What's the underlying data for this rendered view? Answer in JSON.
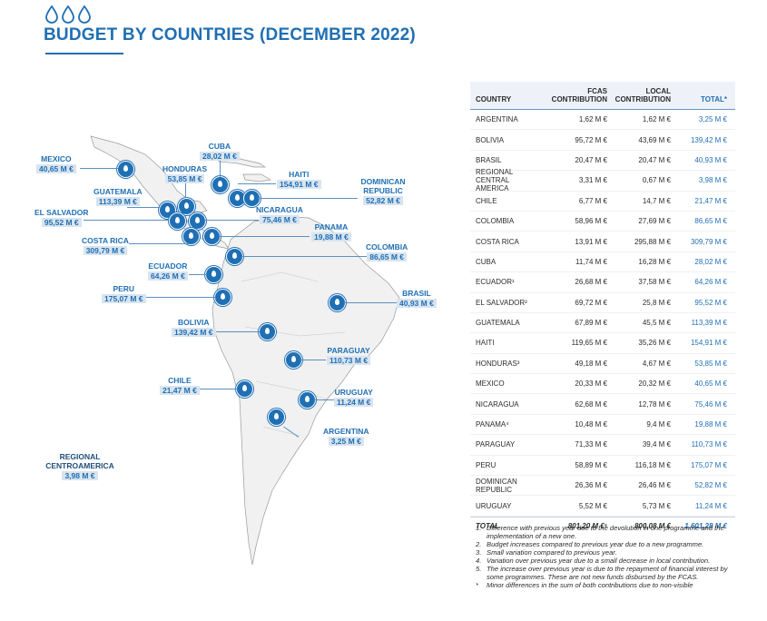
{
  "title": "BUDGET BY COUNTRIES (DECEMBER 2022)",
  "accent": "#1f6fb4",
  "table": {
    "headers": [
      "COUNTRY",
      "FCAS CONTRIBUTION",
      "LOCAL CONTRIBUTION",
      "TOTAL*"
    ],
    "rows": [
      [
        "ARGENTINA",
        "1,62 M €",
        "1,62 M €",
        "3,25 M €"
      ],
      [
        "BOLIVIA",
        "95,72 M €",
        "43,69 M €",
        "139,42 M €"
      ],
      [
        "BRASIL",
        "20,47 M €",
        "20,47 M €",
        "40,93 M €"
      ],
      [
        "REGIONAL CENTRAL AMERICA",
        "3,31 M €",
        "0,67 M €",
        "3,98 M €"
      ],
      [
        "CHILE",
        "6,77 M €",
        "14,7 M €",
        "21,47 M €"
      ],
      [
        "COLOMBIA",
        "58,96 M €",
        "27,69 M €",
        "86,65 M €"
      ],
      [
        "COSTA RICA",
        "13,91 M €",
        "295,88 M €",
        "309,79 M €"
      ],
      [
        "CUBA",
        "11,74 M €",
        "16,28 M €",
        "28,02 M €"
      ],
      [
        "ECUADOR¹",
        "26,68 M €",
        "37,58 M €",
        "64,26 M €"
      ],
      [
        "EL SALVADOR²",
        "69,72 M €",
        "25,8 M €",
        "95,52 M €"
      ],
      [
        "GUATEMALA",
        "67,89 M €",
        "45,5 M €",
        "113,39 M €"
      ],
      [
        "HAITI",
        "119,65 M €",
        "35,26 M €",
        "154,91 M €"
      ],
      [
        "HONDURAS³",
        "49,18 M €",
        "4,67 M €",
        "53,85 M €"
      ],
      [
        "MEXICO",
        "20,33 M €",
        "20,32 M €",
        "40,65 M €"
      ],
      [
        "NICARAGUA",
        "62,68 M €",
        "12,78 M €",
        "75,46 M €"
      ],
      [
        "PANAMA⁴",
        "10,48 M €",
        "9,4 M €",
        "19,88 M €"
      ],
      [
        "PARAGUAY",
        "71,33 M €",
        "39,4 M €",
        "110,73 M €"
      ],
      [
        "PERU",
        "58,89 M €",
        "116,18 M €",
        "175,07 M €"
      ],
      [
        "DOMINICAN REPUBLIC",
        "26,36 M €",
        "26,46 M €",
        "52,82 M €"
      ],
      [
        "URUGUAY",
        "5,52 M €",
        "5,73 M €",
        "11,24 M €"
      ]
    ],
    "total": [
      "TOTAL",
      "801,20 M €⁵",
      "800,08 M €",
      "1.601,28 M €"
    ]
  },
  "notes": [
    {
      "k": "1.",
      "t": "Difference with previous year due to the devolution in one programme and the implementation of a new one."
    },
    {
      "k": "2.",
      "t": "Budget increases compared to previous year due to a new programme."
    },
    {
      "k": "3.",
      "t": "Small variation compared to previous year."
    },
    {
      "k": "4.",
      "t": "Variation over previous year due to a small decrease in local contribution."
    },
    {
      "k": "5.",
      "t": "The increase over previous year is due to the repayment of financial interest by some programmes. These are not new funds disbursed by the FCAS."
    },
    {
      "k": "*",
      "t": "Minor differences in the sum of both contributions due to non-visible"
    }
  ],
  "map_labels": [
    {
      "id": "mexico",
      "name": "MEXICO",
      "value": "40,65 M €"
    },
    {
      "id": "cuba",
      "name": "CUBA",
      "value": "28,02 M €"
    },
    {
      "id": "honduras",
      "name": "HONDURAS",
      "value": "53,85 M €"
    },
    {
      "id": "haiti",
      "name": "HAITI",
      "value": "154,91 M €"
    },
    {
      "id": "dominican",
      "name": "DOMINICAN REPUBLIC",
      "value": "52,82 M €"
    },
    {
      "id": "guatemala",
      "name": "GUATEMALA",
      "value": "113,39 M €"
    },
    {
      "id": "elsalvador",
      "name": "EL SALVADOR",
      "value": "95,52 M €"
    },
    {
      "id": "nicaragua",
      "name": "NICARAGUA",
      "value": "75,46 M €"
    },
    {
      "id": "costarica",
      "name": "COSTA RICA",
      "value": "309,79 M €"
    },
    {
      "id": "panama",
      "name": "PANAMA",
      "value": "19,88 M €"
    },
    {
      "id": "colombia",
      "name": "COLOMBIA",
      "value": "86,65 M €"
    },
    {
      "id": "ecuador",
      "name": "ECUADOR",
      "value": "64,26 M €"
    },
    {
      "id": "peru",
      "name": "PERU",
      "value": "175,07 M €"
    },
    {
      "id": "brasil",
      "name": "BRASIL",
      "value": "40,93 M €"
    },
    {
      "id": "bolivia",
      "name": "BOLIVIA",
      "value": "139,42 M €"
    },
    {
      "id": "paraguay",
      "name": "PARAGUAY",
      "value": "110,73 M €"
    },
    {
      "id": "chile",
      "name": "CHILE",
      "value": "21,47 M €"
    },
    {
      "id": "uruguay",
      "name": "URUGUAY",
      "value": "11,24 M €"
    },
    {
      "id": "argentina",
      "name": "ARGENTINA",
      "value": "3,25 M €"
    },
    {
      "id": "regional",
      "name": "REGIONAL CENTROAMERICA",
      "value": "3,98 M €"
    }
  ]
}
